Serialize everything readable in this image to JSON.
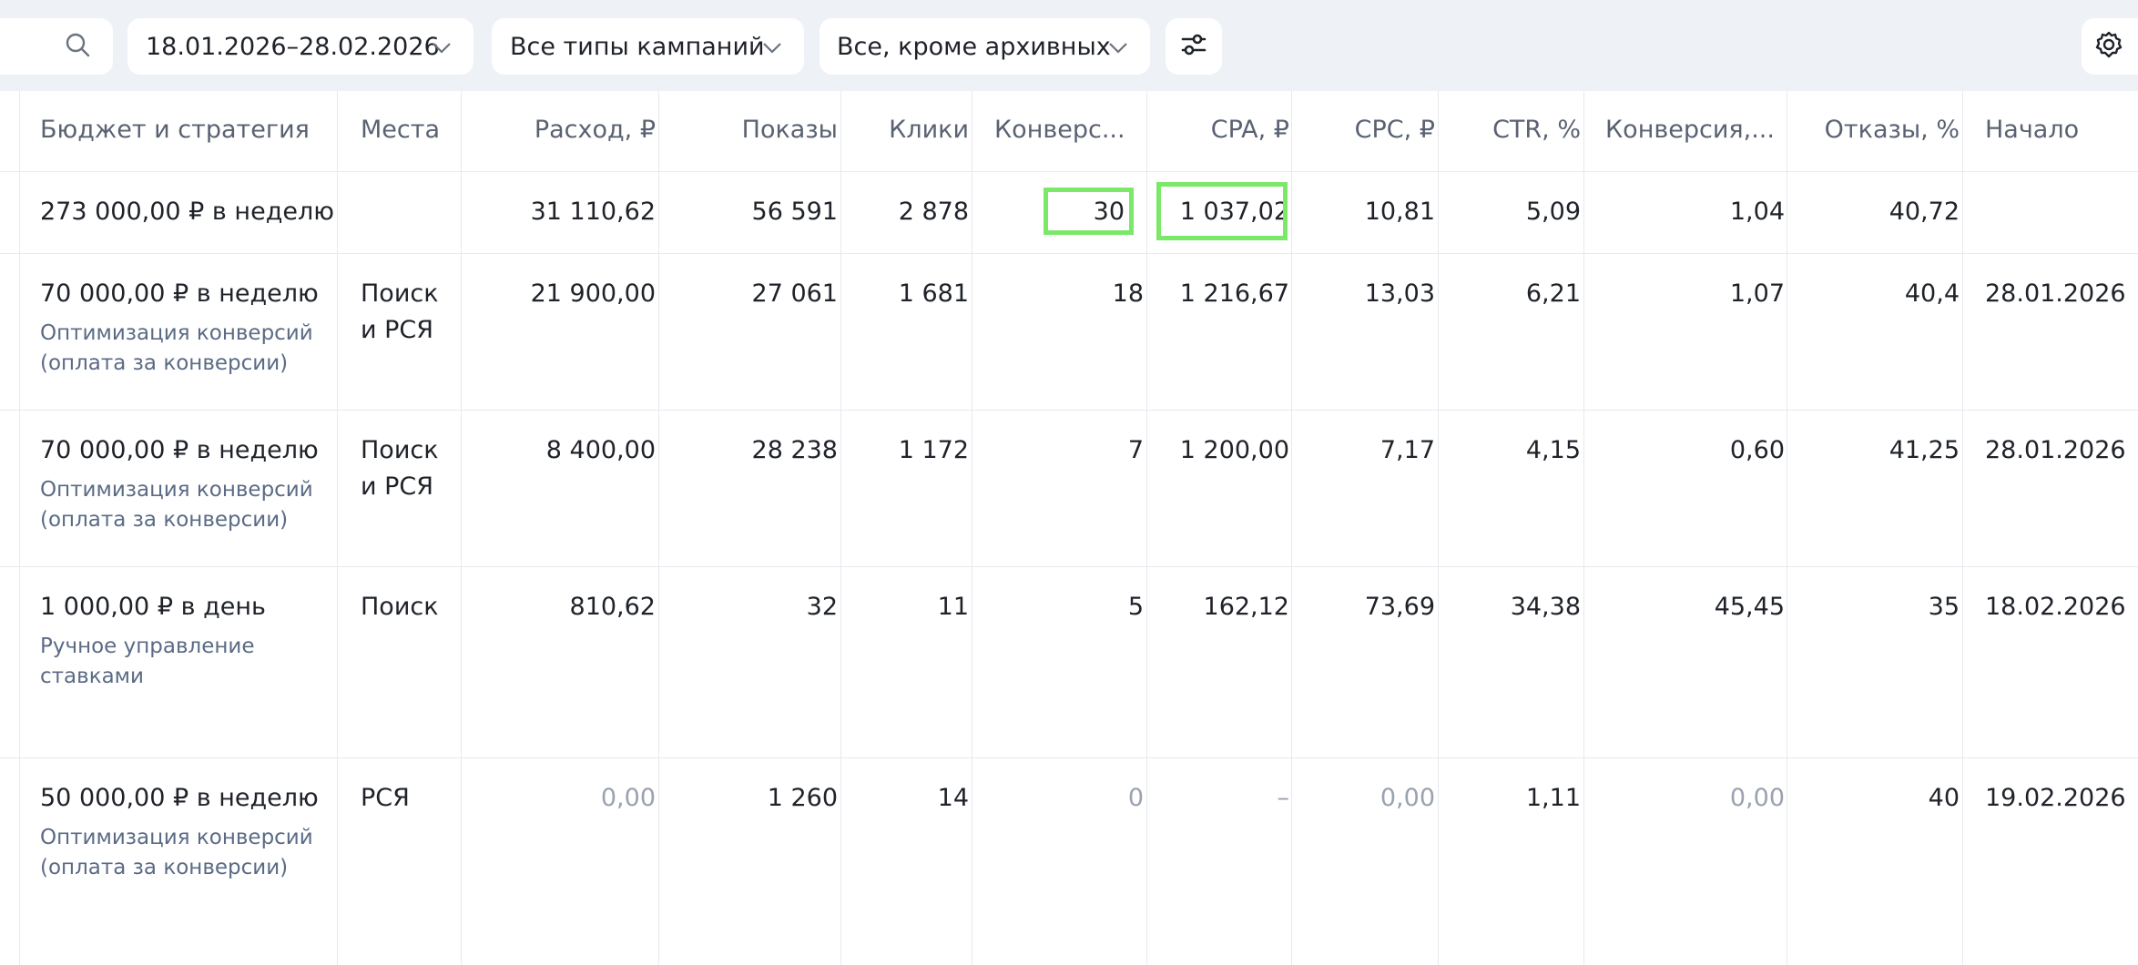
{
  "toolbar": {
    "date_range": "18.01.2026–28.02.2026",
    "campaign_types": "Все типы кампаний",
    "status_filter": "Все, кроме архивных"
  },
  "table": {
    "headers": {
      "budget": "Бюджет и стратегия",
      "places": "Места",
      "spend": "Расход, ₽",
      "impressions": "Показы",
      "clicks": "Клики",
      "conversions": "Конверс...",
      "cpa": "CPA, ₽",
      "cpc": "CPC, ₽",
      "ctr": "CTR, %",
      "conv_rate": "Конверсия,...",
      "bounces": "Отказы, %",
      "start": "Начало"
    },
    "total": {
      "budget": "273 000,00 ₽ в неделю",
      "spend": "31 110,62",
      "impressions": "56 591",
      "clicks": "2 878",
      "conversions": "30",
      "cpa": "1 037,02",
      "cpc": "10,81",
      "ctr": "5,09",
      "conv_rate": "1,04",
      "bounces": "40,72"
    },
    "rows": [
      {
        "budget": "70 000,00 ₽ в неделю",
        "strategy": "Оптимизация конверсий (оплата за конверсии)",
        "places_1": "Поиск",
        "places_2": "и РСЯ",
        "spend": "21 900,00",
        "impressions": "27 061",
        "clicks": "1 681",
        "conversions": "18",
        "cpa": "1 216,67",
        "cpc": "13,03",
        "ctr": "6,21",
        "conv_rate": "1,07",
        "bounces": "40,4",
        "start": "28.01.2026"
      },
      {
        "budget": "70 000,00 ₽ в неделю",
        "strategy": "Оптимизация конверсий (оплата за конверсии)",
        "places_1": "Поиск",
        "places_2": "и РСЯ",
        "spend": "8 400,00",
        "impressions": "28 238",
        "clicks": "1 172",
        "conversions": "7",
        "cpa": "1 200,00",
        "cpc": "7,17",
        "ctr": "4,15",
        "conv_rate": "0,60",
        "bounces": "41,25",
        "start": "28.01.2026"
      },
      {
        "budget": "1 000,00 ₽ в день",
        "strategy": "Ручное управление ставками",
        "places_1": "Поиск",
        "spend": "810,62",
        "impressions": "32",
        "clicks": "11",
        "conversions": "5",
        "cpa": "162,12",
        "cpc": "73,69",
        "ctr": "34,38",
        "conv_rate": "45,45",
        "bounces": "35",
        "start": "18.02.2026"
      },
      {
        "budget": "50 000,00 ₽ в неделю",
        "strategy": "Оптимизация конверсий (оплата за конверсии)",
        "places_1": "РСЯ",
        "spend": "0,00",
        "impressions": "1 260",
        "clicks": "14",
        "conversions": "0",
        "cpa": "–",
        "cpc": "0,00",
        "ctr": "1,11",
        "conv_rate": "0,00",
        "bounces": "40",
        "start": "19.02.2026"
      }
    ]
  },
  "colors": {
    "background": "#eef1f6",
    "highlight": "#7be86a",
    "muted_text": "#9aa2b0",
    "strategy_text": "#5b6b85"
  }
}
